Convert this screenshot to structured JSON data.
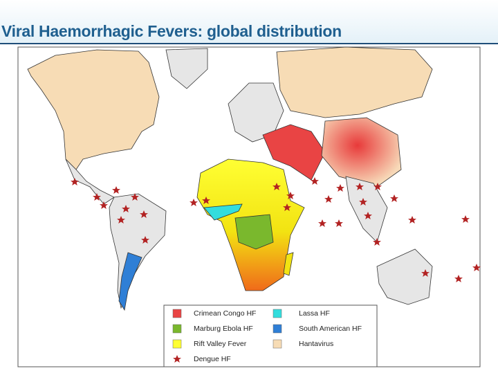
{
  "title": "Viral Haemorrhagic Fevers: global distribution",
  "legend": [
    {
      "label": "Crimean Congo HF",
      "color": "#e94444"
    },
    {
      "label": "Lassa HF",
      "color": "#33dddd"
    },
    {
      "label": "Marburg Ebola HF",
      "color": "#7ab82d"
    },
    {
      "label": "South American HF",
      "color": "#2f7fd6"
    },
    {
      "label": "Rift Valley Fever",
      "color": "#ffff33"
    },
    {
      "label": "Hantavirus",
      "color": "#f7dcb5"
    },
    {
      "label": "Dengue HF",
      "color": "#b22222",
      "marker": "star"
    }
  ]
}
